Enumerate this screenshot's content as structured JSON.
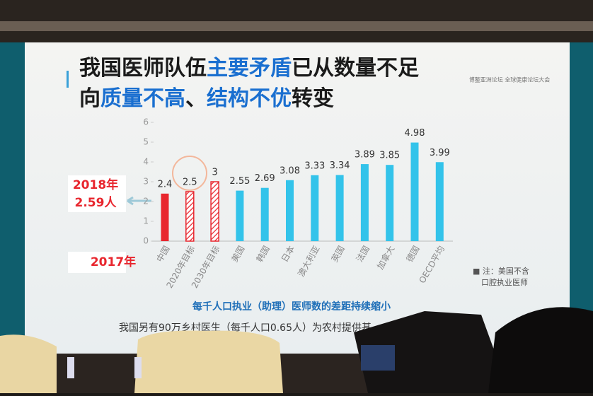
{
  "chart_data": {
    "type": "bar",
    "title_lines": [
      [
        {
          "text": "我国医师队伍",
          "color": "#1a1a1a"
        },
        {
          "text": "主要矛盾",
          "color": "#1a6fd0"
        },
        {
          "text": "已从数量不足",
          "color": "#1a1a1a"
        }
      ],
      [
        {
          "text": "向",
          "color": "#1a1a1a"
        },
        {
          "text": "质量不高",
          "color": "#1a6fd0"
        },
        {
          "text": "、",
          "color": "#1a1a1a"
        },
        {
          "text": "结构不优",
          "color": "#1a6fd0"
        },
        {
          "text": "转变",
          "color": "#1a1a1a"
        }
      ]
    ],
    "logo": "博鳌亚洲论坛 全球健康论坛大会",
    "categories": [
      "中国",
      "2020年目标",
      "2030年目标",
      "美国",
      "韩国",
      "日本",
      "澳大利亚",
      "英国",
      "法国",
      "加拿大",
      "德国",
      "OECD平均"
    ],
    "values": [
      2.4,
      2.5,
      3,
      2.55,
      2.69,
      3.08,
      3.33,
      3.34,
      3.89,
      3.85,
      4.98,
      3.99
    ],
    "colors": [
      "#e8262e",
      "#e8262e",
      "#e8262e",
      "#33c3ea",
      "#33c3ea",
      "#33c3ea",
      "#33c3ea",
      "#33c3ea",
      "#33c3ea",
      "#33c3ea",
      "#33c3ea",
      "#33c3ea"
    ],
    "bar_styles": [
      "solid",
      "hatched",
      "hatched",
      "solid",
      "solid",
      "solid",
      "solid",
      "solid",
      "solid",
      "solid",
      "solid",
      "solid"
    ],
    "ylim": [
      0,
      6
    ],
    "yticks": [
      0,
      1,
      2,
      3,
      4,
      5,
      6
    ],
    "annotations": [
      "2018年",
      "2.59人",
      "2017年"
    ],
    "note_lines": [
      "■ 注：美国不含",
      "口腔执业医师"
    ],
    "subtitle": "每千人口执业（助理）医师数的差距持续缩小",
    "footer": "我国另有90万乡村医生（每千人口0.65人）为农村提供基"
  }
}
